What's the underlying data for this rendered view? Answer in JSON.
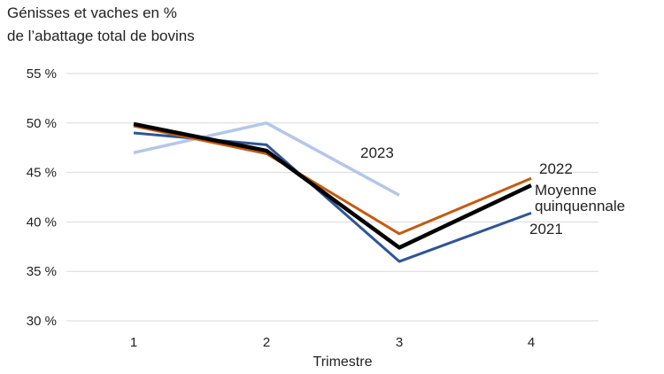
{
  "chart_data": {
    "type": "line",
    "title_lines": [
      "Génisses et vaches en %",
      "de l’abattage total de bovins"
    ],
    "xlabel": "Trimestre",
    "ylabel": "",
    "x": [
      "1",
      "2",
      "3",
      "4"
    ],
    "ylim": [
      30,
      55
    ],
    "yticks": [
      30,
      35,
      40,
      45,
      50,
      55
    ],
    "ytick_labels": [
      "30 %",
      "35 %",
      "40 %",
      "45 %",
      "50 %",
      "55 %"
    ],
    "grid": true,
    "series": [
      {
        "name": "2023",
        "color": "#b4c7e7",
        "values": [
          47.0,
          50.0,
          42.7,
          null
        ]
      },
      {
        "name": "2021",
        "color": "#2f5597",
        "values": [
          49.0,
          47.8,
          36.0,
          40.9
        ]
      },
      {
        "name": "2022",
        "color": "#c55a11",
        "values": [
          49.7,
          46.9,
          38.8,
          44.4
        ]
      },
      {
        "name": "Moyenne quinquennale",
        "label_lines": [
          "Moyenne",
          "quinquennale"
        ],
        "color": "#000000",
        "values": [
          49.9,
          47.2,
          37.4,
          43.7
        ]
      }
    ]
  }
}
